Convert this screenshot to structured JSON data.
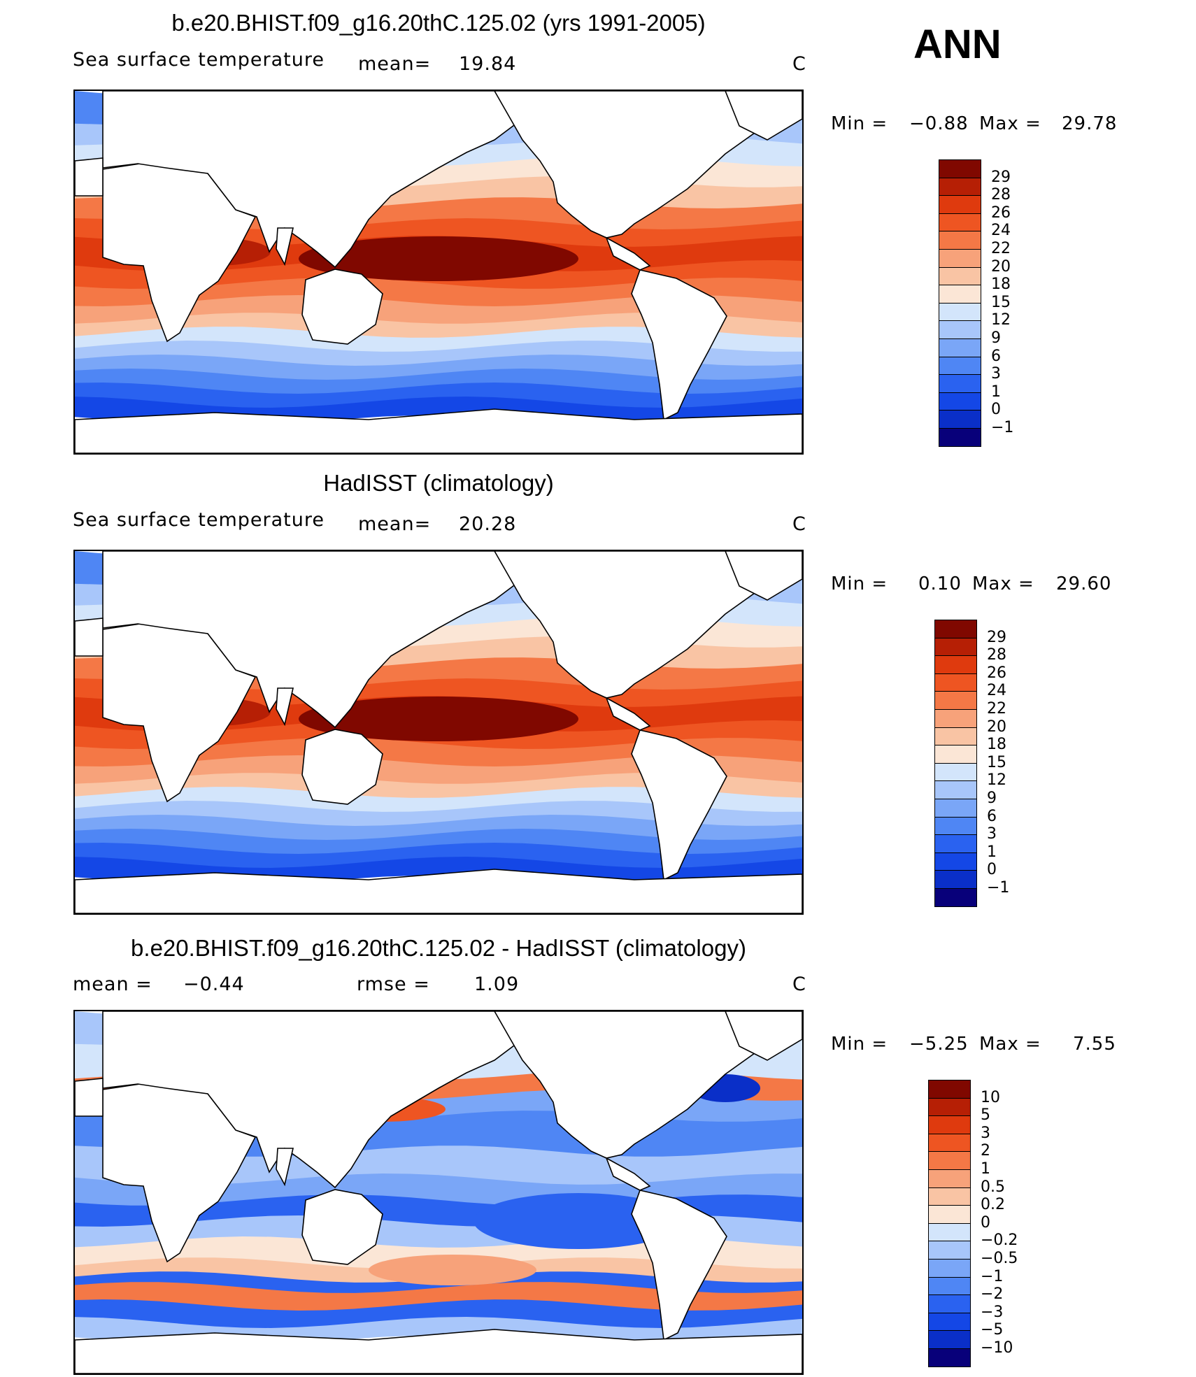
{
  "season": "ANN",
  "colors": {
    "abs_scale": [
      "#08007a",
      "#0a2fc8",
      "#1447e6",
      "#2a62f0",
      "#4f86f4",
      "#7aa6f7",
      "#a8c6fa",
      "#d3e5fb",
      "#fbe6d6",
      "#f9c4a4",
      "#f7a27a",
      "#f47846",
      "#ee5522",
      "#df3a0e",
      "#b61f05",
      "#800800"
    ],
    "diff_scale": [
      "#08007a",
      "#0a2fc8",
      "#1447e6",
      "#2a62f0",
      "#4f86f4",
      "#7aa6f7",
      "#a8c6fa",
      "#d3e5fb",
      "#fbe6d6",
      "#f9c4a4",
      "#f7a27a",
      "#f47846",
      "#ee5522",
      "#df3a0e",
      "#b61f05",
      "#800800"
    ]
  },
  "chart_data": [
    {
      "type": "heatmap",
      "title": "b.e20.BHIST.f09_g16.20thC.125.02 (yrs 1991-2005)",
      "variable": "Sea surface temperature",
      "stat_label": "mean=",
      "stat_value": "19.84",
      "units": "C",
      "min_label": "Min =",
      "min_value": "−0.88",
      "max_label": "Max =",
      "max_value": "29.78",
      "colorbar_levels": [
        "29",
        "28",
        "26",
        "24",
        "22",
        "20",
        "18",
        "15",
        "12",
        "9",
        "6",
        "3",
        "1",
        "0",
        "−1"
      ],
      "colormap": "abs_scale"
    },
    {
      "type": "heatmap",
      "title": "HadISST (climatology)",
      "variable": "Sea surface temperature",
      "stat_label": "mean=",
      "stat_value": "20.28",
      "units": "C",
      "min_label": "Min =",
      "min_value": "0.10",
      "max_label": "Max =",
      "max_value": "29.60",
      "colorbar_levels": [
        "29",
        "28",
        "26",
        "24",
        "22",
        "20",
        "18",
        "15",
        "12",
        "9",
        "6",
        "3",
        "1",
        "0",
        "−1"
      ],
      "colormap": "abs_scale"
    },
    {
      "type": "heatmap",
      "title": "b.e20.BHIST.f09_g16.20thC.125.02 - HadISST (climatology)",
      "variable": "",
      "stat_label": "mean =",
      "stat_value": "−0.44",
      "stat2_label": "rmse =",
      "stat2_value": "1.09",
      "units": "C",
      "min_label": "Min =",
      "min_value": "−5.25",
      "max_label": "Max =",
      "max_value": "7.55",
      "colorbar_levels": [
        "10",
        "5",
        "3",
        "2",
        "1",
        "0.5",
        "0.2",
        "0",
        "−0.2",
        "−0.5",
        "−1",
        "−2",
        "−3",
        "−5",
        "−10"
      ],
      "colormap": "diff_scale"
    }
  ]
}
